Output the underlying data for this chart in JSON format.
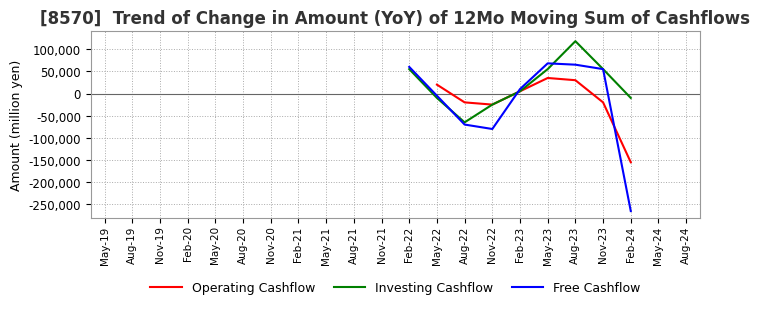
{
  "title": "[8570]  Trend of Change in Amount (YoY) of 12Mo Moving Sum of Cashflows",
  "ylabel": "Amount (million yen)",
  "background_color": "#ffffff",
  "grid_color": "#aaaaaa",
  "title_fontsize": 12,
  "axis_fontsize": 9,
  "legend_labels": [
    "Operating Cashflow",
    "Investing Cashflow",
    "Free Cashflow"
  ],
  "legend_colors": [
    "#ff0000",
    "#008000",
    "#0000ff"
  ],
  "ylim": [
    -280000,
    140000
  ],
  "yticks": [
    100000,
    50000,
    0,
    -50000,
    -100000,
    -150000,
    -200000,
    -250000
  ],
  "tick_labels": [
    "May-19",
    "Aug-19",
    "Nov-19",
    "Feb-20",
    "May-20",
    "Aug-20",
    "Nov-20",
    "Feb-21",
    "May-21",
    "Aug-21",
    "Nov-21",
    "Feb-22",
    "May-22",
    "Aug-22",
    "Nov-22",
    "Feb-23",
    "May-23",
    "Aug-23",
    "Nov-23",
    "Feb-24",
    "May-24",
    "Aug-24"
  ],
  "operating": [
    null,
    null,
    null,
    null,
    null,
    null,
    null,
    null,
    null,
    null,
    null,
    null,
    20000,
    -20000,
    -25000,
    5000,
    35000,
    30000,
    -20000,
    -155000,
    null,
    null
  ],
  "investing": [
    null,
    null,
    null,
    null,
    null,
    null,
    null,
    null,
    null,
    null,
    null,
    55000,
    -10000,
    -65000,
    -25000,
    5000,
    55000,
    118000,
    55000,
    -10000,
    null,
    null
  ],
  "free": [
    null,
    null,
    null,
    null,
    null,
    null,
    null,
    null,
    null,
    null,
    null,
    60000,
    -5000,
    -70000,
    -80000,
    10000,
    68000,
    65000,
    55000,
    -265000,
    null,
    null
  ]
}
